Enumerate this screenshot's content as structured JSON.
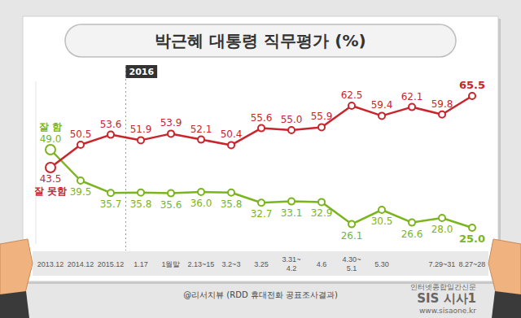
{
  "chart_data": {
    "type": "line",
    "title": "박근혜 대통령 직무평가 (%)",
    "annotations": [
      "2016"
    ],
    "categories": [
      "2013.12",
      "2014.12",
      "2015.12",
      "1.17",
      "1월말",
      "2.13~15",
      "3.2~3",
      "3.25",
      "3.31~4.2",
      "4.6",
      "4.30~5.1",
      "5.30",
      null,
      "7.29~31",
      "8.27~28"
    ],
    "series": [
      {
        "name": "잘 함",
        "color": "#7ab51d",
        "values": [
          49.0,
          39.5,
          35.7,
          35.8,
          35.6,
          36.0,
          35.8,
          32.7,
          33.1,
          32.9,
          26.1,
          30.5,
          26.6,
          28.0,
          25.0
        ],
        "value_labels": [
          "49.0",
          "39.5",
          "35.7",
          "35.8",
          "35.6",
          "36.0",
          "35.8",
          "32.7",
          "33.1",
          "32.9",
          "26.1",
          "30.5",
          "26.6",
          "28.0",
          "25.0"
        ]
      },
      {
        "name": "잘 못함",
        "color": "#c9252c",
        "values": [
          43.5,
          50.5,
          53.6,
          51.9,
          53.9,
          52.1,
          50.4,
          55.6,
          55.0,
          55.9,
          62.5,
          59.4,
          62.1,
          59.8,
          65.5
        ],
        "value_labels": [
          "43.5",
          "50.5",
          "53.6",
          "51.9",
          "53.9",
          "52.1",
          "50.4",
          "55.6",
          "55.0",
          "55.9",
          "62.5",
          "59.4",
          "62.1",
          "59.8",
          "65.5"
        ]
      }
    ],
    "ylim": [
      20,
      70
    ],
    "grid": false,
    "data_labels": true,
    "tick_labels": "x",
    "marker": "circle",
    "source": "@리서치뷰 (RDD 휴대전화 공표조사결과)",
    "watermark": [
      "인터넷종합일간신문",
      "SIS 시사1",
      "www.sisaone.kr"
    ]
  }
}
